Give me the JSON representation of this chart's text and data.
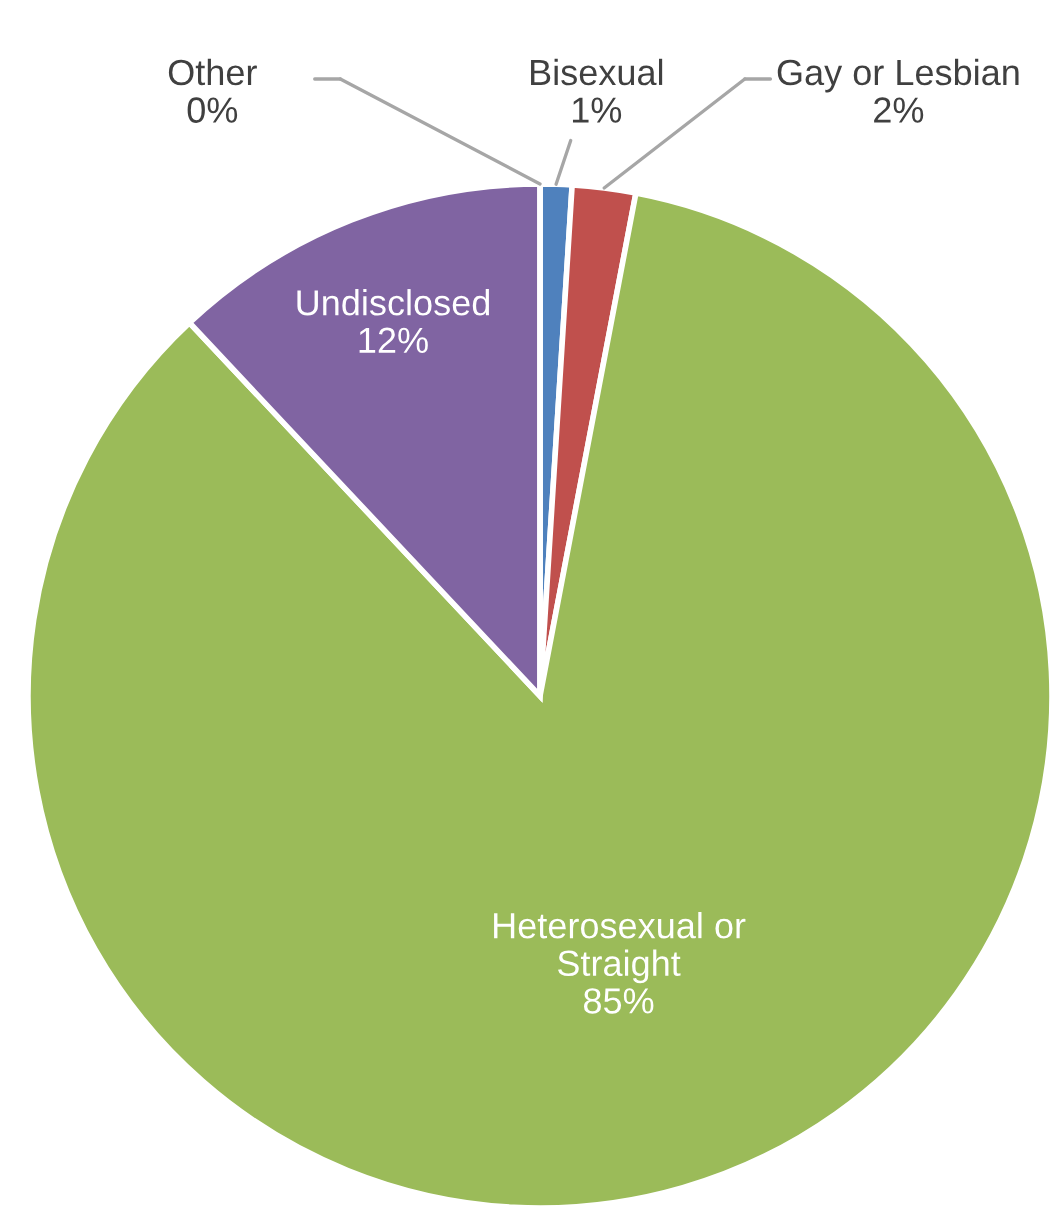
{
  "chart_data": {
    "type": "pie",
    "categories": [
      "Bisexual",
      "Gay or Lesbian",
      "Heterosexual or Straight",
      "Undisclosed",
      "Other"
    ],
    "values": [
      1,
      2,
      85,
      12,
      0
    ],
    "colors": [
      "#4f81bd",
      "#c0504d",
      "#9bbb59",
      "#8064a2",
      "#4bacc6"
    ],
    "value_labels": [
      "1%",
      "2%",
      "85%",
      "12%",
      "0%"
    ]
  }
}
